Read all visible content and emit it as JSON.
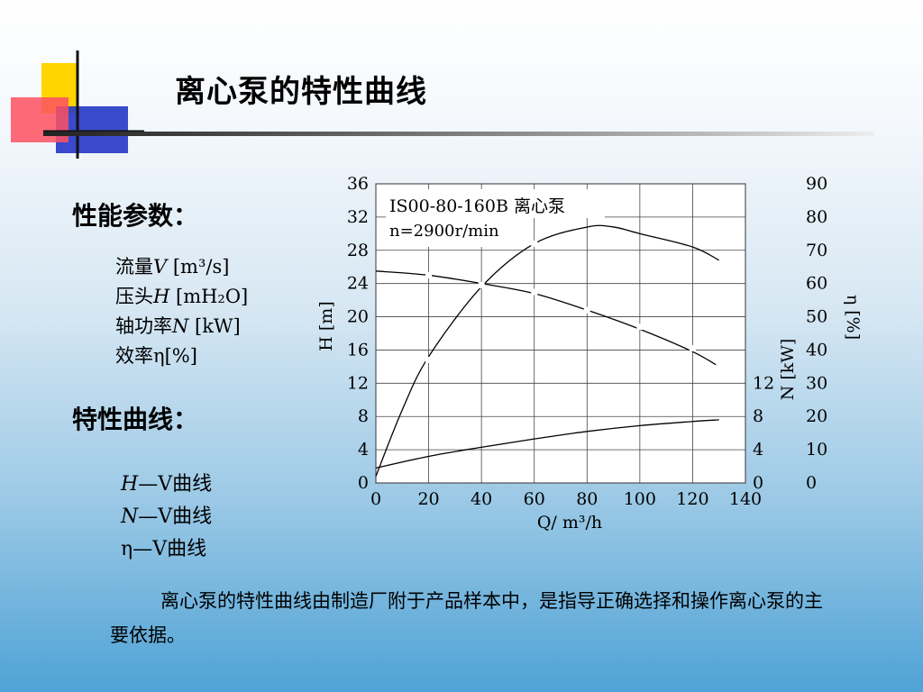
{
  "page": {
    "title": "离心泵的特性曲线",
    "performance_heading": "性能参数：",
    "params": [
      {
        "pre": "流量",
        "sym": "V",
        "post": " [m³/s]"
      },
      {
        "pre": "压头",
        "sym": "H",
        "post": " [mH₂O]"
      },
      {
        "pre": "轴功率",
        "sym": "N",
        "post": " [kW]"
      },
      {
        "pre": "效率",
        "sym": "η",
        "post": "[%]"
      }
    ],
    "curves_heading": "特性曲线：",
    "curves": [
      {
        "sym": "H",
        "rest": "—V曲线"
      },
      {
        "sym": "N",
        "rest": "—V曲线"
      },
      {
        "sym": "η",
        "rest": "—V曲线"
      }
    ],
    "paragraph": "离心泵的特性曲线由制造厂附于产品样本中，是指导正确选择和操作离心泵的主要依据。"
  },
  "chart_data": {
    "type": "line",
    "annotation_line1": "IS00-80-160B 离心泵",
    "annotation_line2": "n=2900r/min",
    "xlabel": "Q/ m³/h",
    "xlim": [
      0,
      140
    ],
    "x_ticks": [
      0,
      20,
      40,
      60,
      80,
      100,
      120,
      140
    ],
    "grid": true,
    "axes": {
      "H": {
        "label": "H [m]",
        "ylim": [
          0,
          36
        ],
        "ticks": [
          0,
          4,
          8,
          12,
          16,
          20,
          24,
          28,
          32,
          36
        ]
      },
      "N": {
        "label": "N [kW]",
        "ylim": [
          0,
          36
        ],
        "ticks": [
          0,
          4,
          8,
          12
        ]
      },
      "eta": {
        "label": "η [%]",
        "ylim": [
          0,
          90
        ],
        "ticks": [
          0,
          10,
          20,
          30,
          40,
          50,
          60,
          70,
          80,
          90
        ]
      }
    },
    "series": [
      {
        "axis": "H",
        "x": [
          0,
          20,
          40,
          60,
          80,
          100,
          120,
          130
        ],
        "y": [
          25.5,
          25,
          24,
          22.8,
          20.8,
          18.5,
          15.8,
          14
        ]
      },
      {
        "axis": "N",
        "x": [
          0,
          20,
          40,
          60,
          80,
          100,
          120,
          130
        ],
        "y": [
          1.8,
          3.2,
          4.3,
          5.3,
          6.2,
          6.9,
          7.4,
          7.6
        ]
      },
      {
        "axis": "eta",
        "x": [
          0,
          10,
          20,
          40,
          60,
          80,
          90,
          100,
          120,
          130
        ],
        "y": [
          2,
          22,
          38,
          59,
          72,
          77,
          77,
          75,
          71,
          67
        ]
      }
    ],
    "markers": [
      {
        "axis": "H",
        "x": [
          20,
          40,
          60,
          80,
          100,
          120,
          130
        ],
        "y": [
          25,
          23.8,
          23,
          20.8,
          18.8,
          16.2,
          14
        ]
      },
      {
        "axis": "eta",
        "x": [
          20,
          60
        ],
        "y": [
          37,
          72
        ]
      }
    ]
  }
}
